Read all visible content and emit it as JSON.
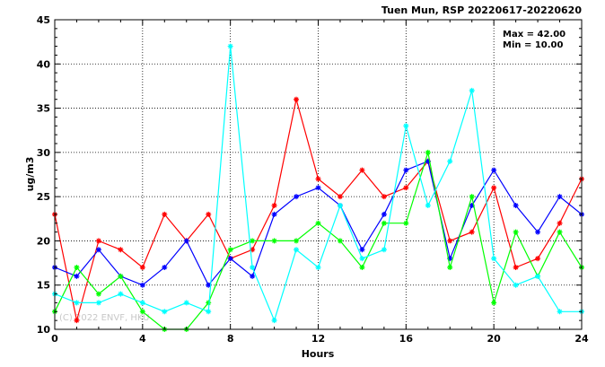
{
  "chart_data": {
    "type": "line",
    "title": "Tuen Mun, RSP 20220617-20220620",
    "xlabel": "Hours",
    "ylabel": "ug/m3",
    "xlim": [
      0,
      24
    ],
    "ylim": [
      10,
      45
    ],
    "xticks": [
      0,
      4,
      8,
      12,
      16,
      20,
      24
    ],
    "yticks": [
      10,
      15,
      20,
      25,
      30,
      35,
      40,
      45
    ],
    "grid": true,
    "stats": {
      "max": "Max = 42.00",
      "min": "Min = 10.00"
    },
    "watermark": "(C) 2022 ENVF, HKU",
    "x": [
      0,
      1,
      2,
      3,
      4,
      5,
      6,
      7,
      8,
      9,
      10,
      11,
      12,
      13,
      14,
      15,
      16,
      17,
      18,
      19,
      20,
      21,
      22,
      23,
      24
    ],
    "series": [
      {
        "color": "#ff0000",
        "values": [
          23,
          11,
          20,
          19,
          17,
          23,
          20,
          23,
          18,
          19,
          24,
          36,
          27,
          25,
          28,
          25,
          26,
          29,
          20,
          21,
          26,
          17,
          18,
          22,
          27
        ]
      },
      {
        "color": "#0000ff",
        "values": [
          17,
          16,
          19,
          16,
          15,
          17,
          20,
          15,
          18,
          16,
          23,
          25,
          26,
          24,
          19,
          23,
          28,
          29,
          18,
          24,
          28,
          24,
          21,
          25,
          23
        ]
      },
      {
        "color": "#00ff00",
        "values": [
          12,
          17,
          14,
          16,
          12,
          10,
          10,
          13,
          19,
          20,
          20,
          20,
          22,
          20,
          17,
          22,
          22,
          30,
          17,
          25,
          13,
          21,
          16,
          21,
          17
        ]
      },
      {
        "color": "#00ffff",
        "values": [
          14,
          13,
          13,
          14,
          13,
          12,
          13,
          12,
          42,
          17,
          11,
          19,
          17,
          24,
          18,
          19,
          33,
          24,
          29,
          37,
          18,
          15,
          16,
          12,
          12
        ]
      }
    ]
  }
}
